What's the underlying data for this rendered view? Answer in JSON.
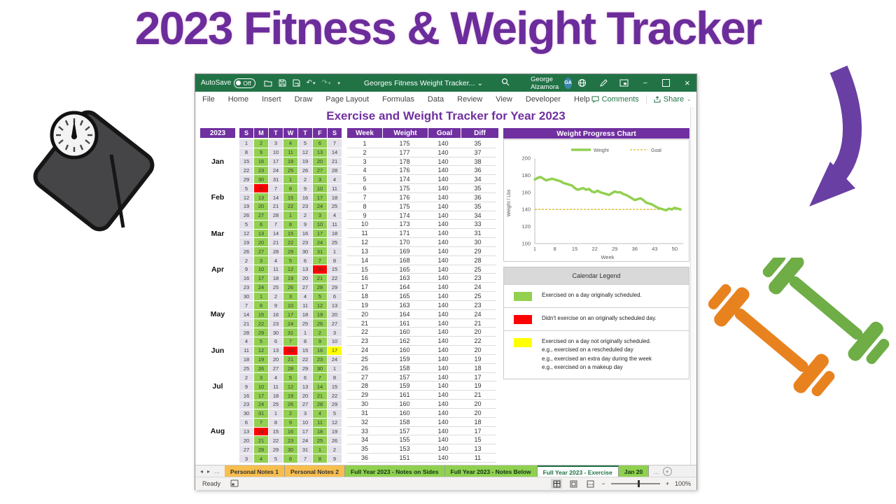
{
  "page": {
    "title": "2023 Fitness & Weight Tracker"
  },
  "colors": {
    "titlebar_green": "#217346",
    "header_purple": "#7030A0",
    "cell_green": "#92D050",
    "cell_red": "#FF0000",
    "cell_yellow": "#FFFF00",
    "cell_plain": "#E4E1EB",
    "weight_line": "#92D050",
    "goal_line": "#DDB927",
    "title_purple": "#6B2D9B",
    "dumbbell_green": "#6FAD47",
    "dumbbell_orange": "#E8821F",
    "arrow_purple": "#6A3FA3"
  },
  "titlebar": {
    "autosave_label": "AutoSave",
    "autosave_state": "Off",
    "doc_title": "Georges Fitness Weight Tracker...",
    "doc_caret": "⌄",
    "user_name": "George Alzamora",
    "avatar_initials": "GA",
    "minimize_glyph": "–",
    "close_glyph": "×"
  },
  "menu": {
    "tabs": [
      "File",
      "Home",
      "Insert",
      "Draw",
      "Page Layout",
      "Formulas",
      "Data",
      "Review",
      "View",
      "Developer",
      "Help"
    ],
    "comments_label": "Comments",
    "share_label": "Share",
    "share_caret": "⌄"
  },
  "sheet": {
    "title": "Exercise and Weight Tracker for Year 2023",
    "calendar": {
      "year": "2023",
      "day_headers": [
        "S",
        "M",
        "T",
        "W",
        "T",
        "F",
        "S"
      ],
      "months": [
        {
          "label": "Jan",
          "row": 3
        },
        {
          "label": "Feb",
          "row": 7
        },
        {
          "label": "Mar",
          "row": 11
        },
        {
          "label": "Apr",
          "row": 15
        },
        {
          "label": "May",
          "row": 20
        },
        {
          "label": "Jun",
          "row": 24
        },
        {
          "label": "Jul",
          "row": 28
        },
        {
          "label": "Aug",
          "row": 33
        }
      ],
      "rows": [
        [
          "1",
          "2g",
          "3",
          "4g",
          "5",
          "6g",
          "7"
        ],
        [
          "8",
          "9g",
          "10",
          "11g",
          "12",
          "13g",
          "14"
        ],
        [
          "15",
          "16g",
          "17",
          "18g",
          "19",
          "20g",
          "21"
        ],
        [
          "22",
          "23g",
          "24",
          "25g",
          "26",
          "27g",
          "28"
        ],
        [
          "29",
          "30g",
          "31",
          "1g",
          "2",
          "3g",
          "4"
        ],
        [
          "5",
          "6r",
          "7",
          "8g",
          "9",
          "10g",
          "11"
        ],
        [
          "12",
          "13g",
          "14",
          "15g",
          "16",
          "17g",
          "18"
        ],
        [
          "19",
          "20g",
          "21",
          "22g",
          "23",
          "24g",
          "25"
        ],
        [
          "26",
          "27g",
          "28",
          "1g",
          "2",
          "3g",
          "4"
        ],
        [
          "5",
          "6g",
          "7",
          "8g",
          "9",
          "10g",
          "11"
        ],
        [
          "12",
          "13g",
          "14",
          "15g",
          "16",
          "17g",
          "18"
        ],
        [
          "19",
          "20g",
          "21",
          "22g",
          "23",
          "24g",
          "25"
        ],
        [
          "26",
          "27g",
          "28",
          "29g",
          "30",
          "31g",
          "1"
        ],
        [
          "2",
          "3g",
          "4",
          "5g",
          "6",
          "7g",
          "8"
        ],
        [
          "9",
          "10g",
          "11",
          "12g",
          "13",
          "14r",
          "15"
        ],
        [
          "16",
          "17g",
          "18",
          "19g",
          "20",
          "21g",
          "22"
        ],
        [
          "23",
          "24g",
          "25",
          "26g",
          "27",
          "28g",
          "29"
        ],
        [
          "30",
          "1g",
          "2",
          "3g",
          "4",
          "5g",
          "6"
        ],
        [
          "7",
          "8g",
          "9",
          "10g",
          "11",
          "12g",
          "13"
        ],
        [
          "14",
          "15g",
          "16",
          "17g",
          "18",
          "19g",
          "20"
        ],
        [
          "21",
          "22g",
          "23",
          "24g",
          "25",
          "26g",
          "27"
        ],
        [
          "28",
          "29g",
          "30",
          "31g",
          "1",
          "2g",
          "3"
        ],
        [
          "4",
          "5g",
          "6",
          "7g",
          "8",
          "9g",
          "10"
        ],
        [
          "11",
          "12g",
          "13",
          "14r",
          "15",
          "16g",
          "17y"
        ],
        [
          "18",
          "19g",
          "20",
          "21g",
          "22",
          "23g",
          "24"
        ],
        [
          "25",
          "26g",
          "27",
          "28g",
          "29",
          "30g",
          "1"
        ],
        [
          "2",
          "3g",
          "4",
          "5g",
          "6",
          "7g",
          "8"
        ],
        [
          "9",
          "10g",
          "11",
          "12g",
          "13",
          "14g",
          "15"
        ],
        [
          "16",
          "17g",
          "18",
          "19g",
          "20",
          "21g",
          "22"
        ],
        [
          "23",
          "24g",
          "25",
          "26g",
          "27",
          "28g",
          "29"
        ],
        [
          "30",
          "31g",
          "1",
          "2g",
          "3",
          "4g",
          "5"
        ],
        [
          "6",
          "7g",
          "8",
          "9g",
          "10",
          "11g",
          "12"
        ],
        [
          "13",
          "14r",
          "15",
          "16g",
          "17",
          "18g",
          "19"
        ],
        [
          "20",
          "21g",
          "22",
          "23g",
          "24",
          "25g",
          "26"
        ],
        [
          "27",
          "28g",
          "29",
          "30g",
          "31",
          "1g",
          "2"
        ],
        [
          "3",
          "4g",
          "5",
          "6g",
          "7",
          "8g",
          "9"
        ]
      ]
    },
    "table": {
      "headers": [
        "Week",
        "Weight",
        "Goal",
        "Diff"
      ],
      "rows": [
        [
          1,
          175,
          140,
          35
        ],
        [
          2,
          177,
          140,
          37
        ],
        [
          3,
          178,
          140,
          38
        ],
        [
          4,
          176,
          140,
          36
        ],
        [
          5,
          174,
          140,
          34
        ],
        [
          6,
          175,
          140,
          35
        ],
        [
          7,
          176,
          140,
          36
        ],
        [
          8,
          175,
          140,
          35
        ],
        [
          9,
          174,
          140,
          34
        ],
        [
          10,
          173,
          140,
          33
        ],
        [
          11,
          171,
          140,
          31
        ],
        [
          12,
          170,
          140,
          30
        ],
        [
          13,
          169,
          140,
          29
        ],
        [
          14,
          168,
          140,
          28
        ],
        [
          15,
          165,
          140,
          25
        ],
        [
          16,
          163,
          140,
          23
        ],
        [
          17,
          164,
          140,
          24
        ],
        [
          18,
          165,
          140,
          25
        ],
        [
          19,
          163,
          140,
          23
        ],
        [
          20,
          164,
          140,
          24
        ],
        [
          21,
          161,
          140,
          21
        ],
        [
          22,
          160,
          140,
          20
        ],
        [
          23,
          162,
          140,
          22
        ],
        [
          24,
          160,
          140,
          20
        ],
        [
          25,
          159,
          140,
          19
        ],
        [
          26,
          158,
          140,
          18
        ],
        [
          27,
          157,
          140,
          17
        ],
        [
          28,
          159,
          140,
          19
        ],
        [
          29,
          161,
          140,
          21
        ],
        [
          30,
          160,
          140,
          20
        ],
        [
          31,
          160,
          140,
          20
        ],
        [
          32,
          158,
          140,
          18
        ],
        [
          33,
          157,
          140,
          17
        ],
        [
          34,
          155,
          140,
          15
        ],
        [
          35,
          153,
          140,
          13
        ],
        [
          36,
          151,
          140,
          11
        ]
      ]
    },
    "legend": {
      "title": "Calendar Legend",
      "items": [
        {
          "color": "#92D050",
          "lines": [
            "Exercised on a day originally scheduled."
          ]
        },
        {
          "color": "#FF0000",
          "lines": [
            "Didn't exercise on an originally scheduled day."
          ]
        },
        {
          "color": "#FFFF00",
          "lines": [
            "Exercised on a day not originally scheduled.",
            "e.g., exercised on a rescheduled day",
            "e.g., exercised an extra day during the week",
            "e.g., exercised on a makeup day"
          ]
        }
      ]
    }
  },
  "chart_data": {
    "type": "line",
    "title": "Weight Progress Chart",
    "xlabel": "Week",
    "ylabel": "Weight / Lbs",
    "ylim": [
      100,
      200
    ],
    "yticks": [
      100,
      120,
      140,
      160,
      180,
      200
    ],
    "xticks": [
      1,
      8,
      15,
      22,
      29,
      36,
      43,
      50
    ],
    "x_start": 1,
    "x_max": 52,
    "legend_position": "top",
    "series": [
      {
        "name": "Weight",
        "color": "#92D050",
        "values": [
          175,
          177,
          178,
          176,
          174,
          175,
          176,
          175,
          174,
          173,
          171,
          170,
          169,
          168,
          165,
          163,
          164,
          165,
          163,
          164,
          161,
          160,
          162,
          160,
          159,
          158,
          157,
          159,
          161,
          160,
          160,
          158,
          157,
          155,
          153,
          151,
          152,
          153,
          151,
          148,
          147,
          146,
          144,
          142,
          141,
          140,
          139,
          141,
          140,
          142,
          141,
          140
        ]
      },
      {
        "name": "Goal",
        "color": "#DDB927",
        "style": "dashed",
        "value": 140
      }
    ]
  },
  "sheet_tabs": {
    "nav_left": "◂",
    "nav_right": "▸",
    "overflow": "…",
    "add_label": "+",
    "tabs": [
      {
        "label": "Personal Notes 1",
        "type": "orange"
      },
      {
        "label": "Personal Notes 2",
        "type": "orange"
      },
      {
        "label": "Full Year 2023 - Notes on Sides",
        "type": "green"
      },
      {
        "label": "Full Year 2023 - Notes Below",
        "type": "green"
      },
      {
        "label": "Full Year 2023 - Exercise",
        "type": "active"
      },
      {
        "label": "Jan 20",
        "type": "green-cut"
      }
    ]
  },
  "status": {
    "ready_label": "Ready",
    "zoom_value": "100%",
    "zoom_minus": "−",
    "zoom_plus": "+"
  }
}
